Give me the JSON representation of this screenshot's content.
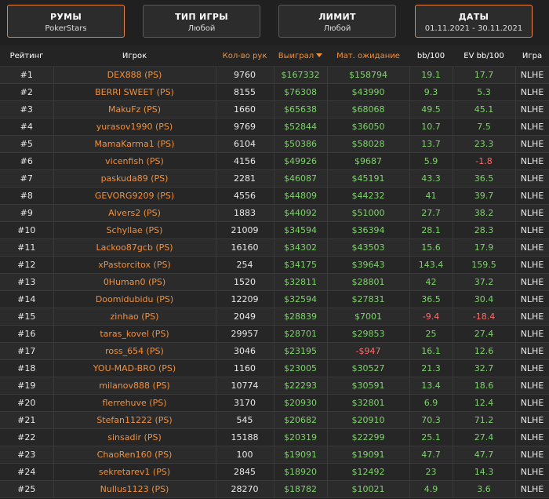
{
  "filters": [
    {
      "title": "РУМЫ",
      "value": "PokerStars",
      "active": true
    },
    {
      "title": "ТИП ИГРЫ",
      "value": "Любой",
      "active": false
    },
    {
      "title": "ЛИМИТ",
      "value": "Любой",
      "active": false
    },
    {
      "title": "ДАТЫ",
      "value": "01.11.2021 - 30.11.2021",
      "active": true
    }
  ],
  "columns": [
    "Рейтинг",
    "Игрок",
    "Кол-во рук",
    "Выиграл",
    "Мат. ожидание",
    "bb/100",
    "EV bb/100",
    "Игра"
  ],
  "colors": {
    "accent": "#f0903a",
    "positive": "#7ed36b",
    "negative": "#ff6b6b"
  },
  "rows": [
    [
      "#1",
      "DEX888 (PS)",
      "9760",
      "$167332",
      "$158794",
      "19.1",
      "17.7",
      "NLHE"
    ],
    [
      "#2",
      "BERRI SWEET (PS)",
      "8155",
      "$76308",
      "$43990",
      "9.3",
      "5.3",
      "NLHE"
    ],
    [
      "#3",
      "MakuFz (PS)",
      "1660",
      "$65638",
      "$68068",
      "49.5",
      "45.1",
      "NLHE"
    ],
    [
      "#4",
      "yurasov1990 (PS)",
      "9769",
      "$52844",
      "$36050",
      "10.7",
      "7.5",
      "NLHE"
    ],
    [
      "#5",
      "MamaKarma1 (PS)",
      "6104",
      "$50386",
      "$58028",
      "13.7",
      "23.3",
      "NLHE"
    ],
    [
      "#6",
      "vicenfish (PS)",
      "4156",
      "$49926",
      "$9687",
      "5.9",
      "-1.8",
      "NLHE"
    ],
    [
      "#7",
      "paskuda89 (PS)",
      "2281",
      "$46087",
      "$45191",
      "43.3",
      "36.5",
      "NLHE"
    ],
    [
      "#8",
      "GEVORG9209 (PS)",
      "4556",
      "$44809",
      "$44232",
      "41",
      "39.7",
      "NLHE"
    ],
    [
      "#9",
      "Alvers2 (PS)",
      "1883",
      "$44092",
      "$51000",
      "27.7",
      "38.2",
      "NLHE"
    ],
    [
      "#10",
      "Schyllae (PS)",
      "21009",
      "$34594",
      "$36394",
      "28.1",
      "28.3",
      "NLHE"
    ],
    [
      "#11",
      "Lackoo87gcb (PS)",
      "16160",
      "$34302",
      "$43503",
      "15.6",
      "17.9",
      "NLHE"
    ],
    [
      "#12",
      "xPastorcitox (PS)",
      "254",
      "$34175",
      "$39643",
      "143.4",
      "159.5",
      "NLHE"
    ],
    [
      "#13",
      "0Human0 (PS)",
      "1520",
      "$32811",
      "$28801",
      "42",
      "37.2",
      "NLHE"
    ],
    [
      "#14",
      "Doomidubidu (PS)",
      "12209",
      "$32594",
      "$27831",
      "36.5",
      "30.4",
      "NLHE"
    ],
    [
      "#15",
      "zinhao (PS)",
      "2049",
      "$28839",
      "$7001",
      "-9.4",
      "-18.4",
      "NLHE"
    ],
    [
      "#16",
      "taras_kovel (PS)",
      "29957",
      "$28701",
      "$29853",
      "25",
      "27.4",
      "NLHE"
    ],
    [
      "#17",
      "ross_654 (PS)",
      "3046",
      "$23195",
      "-$947",
      "16.1",
      "12.6",
      "NLHE"
    ],
    [
      "#18",
      "YOU-MAD-BRO (PS)",
      "1160",
      "$23005",
      "$30527",
      "21.3",
      "32.7",
      "NLHE"
    ],
    [
      "#19",
      "milanov888 (PS)",
      "10774",
      "$22293",
      "$30591",
      "13.4",
      "18.6",
      "NLHE"
    ],
    [
      "#20",
      "flerrehuve (PS)",
      "3170",
      "$20930",
      "$32801",
      "6.9",
      "12.4",
      "NLHE"
    ],
    [
      "#21",
      "Stefan11222 (PS)",
      "545",
      "$20682",
      "$20910",
      "70.3",
      "71.2",
      "NLHE"
    ],
    [
      "#22",
      "sinsadir (PS)",
      "15188",
      "$20319",
      "$22299",
      "25.1",
      "27.4",
      "NLHE"
    ],
    [
      "#23",
      "ChaoRen160 (PS)",
      "100",
      "$19091",
      "$19091",
      "47.7",
      "47.7",
      "NLHE"
    ],
    [
      "#24",
      "sekretarev1 (PS)",
      "2845",
      "$18920",
      "$12492",
      "23",
      "14.3",
      "NLHE"
    ],
    [
      "#25",
      "Nullus1123 (PS)",
      "28270",
      "$18782",
      "$10021",
      "4.9",
      "3.6",
      "NLHE"
    ]
  ]
}
